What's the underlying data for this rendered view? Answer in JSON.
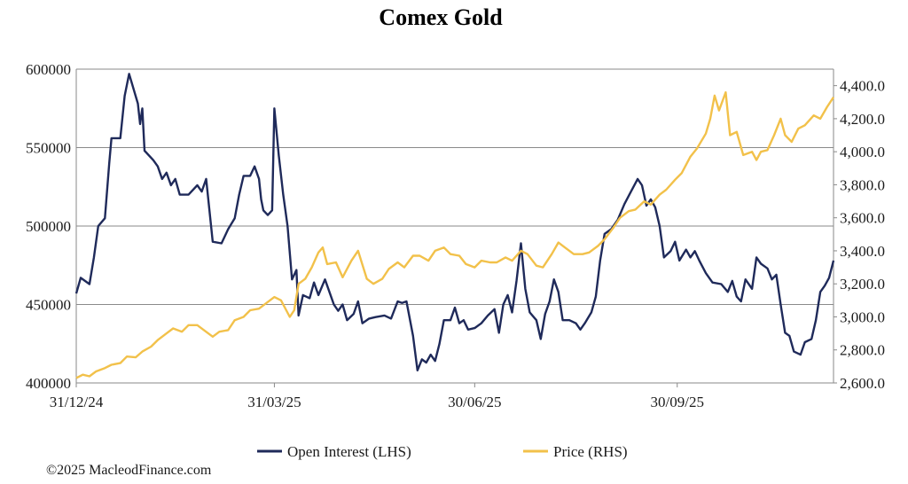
{
  "chart_data": {
    "type": "line",
    "title": "Comex Gold",
    "x_ticks": [
      "31/12/24",
      "31/03/25",
      "30/06/25",
      "30/09/25"
    ],
    "x_range": [
      "2024-12-31",
      "2025-12-10"
    ],
    "y_left": {
      "range": [
        400000,
        600000
      ],
      "ticks": [
        400000,
        450000,
        500000,
        550000,
        600000
      ],
      "tick_labels": [
        "400000",
        "450000",
        "500000",
        "550000",
        "600000"
      ]
    },
    "y_right": {
      "range": [
        2600,
        4500
      ],
      "ticks": [
        2600,
        2800,
        3000,
        3200,
        3400,
        3600,
        3800,
        4000,
        4200,
        4400
      ],
      "tick_labels": [
        "2,600.0",
        "2,800.0",
        "3,000.0",
        "3,200.0",
        "3,400.0",
        "3,600.0",
        "3,800.0",
        "4,000.0",
        "4,200.0",
        "4,400.0"
      ]
    },
    "gridlines": "horizontal",
    "legend_position": "bottom-center",
    "series": [
      {
        "name": "Open Interest (LHS)",
        "axis": "left",
        "color": "#1f2a5a",
        "points": [
          [
            "2024-12-31",
            457000
          ],
          [
            "2025-01-02",
            467000
          ],
          [
            "2025-01-06",
            463000
          ],
          [
            "2025-01-08",
            480000
          ],
          [
            "2025-01-10",
            500000
          ],
          [
            "2025-01-13",
            505000
          ],
          [
            "2025-01-15",
            540000
          ],
          [
            "2025-01-16",
            556000
          ],
          [
            "2025-01-20",
            556000
          ],
          [
            "2025-01-22",
            583000
          ],
          [
            "2025-01-24",
            597000
          ],
          [
            "2025-01-28",
            578000
          ],
          [
            "2025-01-29",
            565000
          ],
          [
            "2025-01-30",
            575000
          ],
          [
            "2025-01-31",
            548000
          ],
          [
            "2025-02-04",
            542000
          ],
          [
            "2025-02-06",
            538000
          ],
          [
            "2025-02-08",
            530000
          ],
          [
            "2025-02-10",
            534000
          ],
          [
            "2025-02-12",
            526000
          ],
          [
            "2025-02-14",
            530000
          ],
          [
            "2025-02-16",
            520000
          ],
          [
            "2025-02-20",
            520000
          ],
          [
            "2025-02-24",
            526000
          ],
          [
            "2025-02-26",
            522000
          ],
          [
            "2025-02-28",
            530000
          ],
          [
            "2025-03-03",
            490000
          ],
          [
            "2025-03-07",
            489000
          ],
          [
            "2025-03-10",
            498000
          ],
          [
            "2025-03-13",
            505000
          ],
          [
            "2025-03-15",
            520000
          ],
          [
            "2025-03-17",
            532000
          ],
          [
            "2025-03-20",
            532000
          ],
          [
            "2025-03-22",
            538000
          ],
          [
            "2025-03-24",
            530000
          ],
          [
            "2025-03-25",
            517000
          ],
          [
            "2025-03-26",
            510000
          ],
          [
            "2025-03-28",
            507000
          ],
          [
            "2025-03-30",
            510000
          ],
          [
            "2025-03-31",
            575000
          ],
          [
            "2025-04-02",
            545000
          ],
          [
            "2025-04-04",
            520000
          ],
          [
            "2025-04-06",
            500000
          ],
          [
            "2025-04-08",
            466000
          ],
          [
            "2025-04-10",
            472000
          ],
          [
            "2025-04-11",
            443000
          ],
          [
            "2025-04-13",
            456000
          ],
          [
            "2025-04-16",
            454000
          ],
          [
            "2025-04-18",
            464000
          ],
          [
            "2025-04-20",
            456000
          ],
          [
            "2025-04-23",
            466000
          ],
          [
            "2025-04-25",
            458000
          ],
          [
            "2025-04-27",
            450000
          ],
          [
            "2025-04-29",
            446000
          ],
          [
            "2025-05-01",
            450000
          ],
          [
            "2025-05-03",
            440000
          ],
          [
            "2025-05-06",
            444000
          ],
          [
            "2025-05-08",
            452000
          ],
          [
            "2025-05-10",
            438000
          ],
          [
            "2025-05-13",
            441000
          ],
          [
            "2025-05-16",
            442000
          ],
          [
            "2025-05-20",
            443000
          ],
          [
            "2025-05-23",
            441000
          ],
          [
            "2025-05-26",
            452000
          ],
          [
            "2025-05-28",
            451000
          ],
          [
            "2025-05-30",
            452000
          ],
          [
            "2025-06-02",
            430000
          ],
          [
            "2025-06-04",
            408000
          ],
          [
            "2025-06-06",
            415000
          ],
          [
            "2025-06-08",
            413000
          ],
          [
            "2025-06-10",
            418000
          ],
          [
            "2025-06-12",
            414000
          ],
          [
            "2025-06-14",
            425000
          ],
          [
            "2025-06-16",
            440000
          ],
          [
            "2025-06-19",
            440000
          ],
          [
            "2025-06-21",
            448000
          ],
          [
            "2025-06-23",
            438000
          ],
          [
            "2025-06-25",
            440000
          ],
          [
            "2025-06-27",
            434000
          ],
          [
            "2025-06-30",
            435000
          ],
          [
            "2025-07-03",
            438000
          ],
          [
            "2025-07-06",
            443000
          ],
          [
            "2025-07-09",
            447000
          ],
          [
            "2025-07-11",
            432000
          ],
          [
            "2025-07-13",
            450000
          ],
          [
            "2025-07-15",
            456000
          ],
          [
            "2025-07-17",
            445000
          ],
          [
            "2025-07-19",
            465000
          ],
          [
            "2025-07-21",
            489000
          ],
          [
            "2025-07-23",
            460000
          ],
          [
            "2025-07-25",
            445000
          ],
          [
            "2025-07-28",
            440000
          ],
          [
            "2025-07-30",
            428000
          ],
          [
            "2025-08-01",
            444000
          ],
          [
            "2025-08-03",
            452000
          ],
          [
            "2025-08-05",
            466000
          ],
          [
            "2025-08-07",
            458000
          ],
          [
            "2025-08-09",
            440000
          ],
          [
            "2025-08-12",
            440000
          ],
          [
            "2025-08-15",
            438000
          ],
          [
            "2025-08-17",
            434000
          ],
          [
            "2025-08-19",
            438000
          ],
          [
            "2025-08-22",
            445000
          ],
          [
            "2025-08-24",
            455000
          ],
          [
            "2025-08-26",
            478000
          ],
          [
            "2025-08-28",
            495000
          ],
          [
            "2025-08-31",
            498000
          ],
          [
            "2025-09-03",
            504000
          ],
          [
            "2025-09-06",
            514000
          ],
          [
            "2025-09-09",
            522000
          ],
          [
            "2025-09-12",
            530000
          ],
          [
            "2025-09-14",
            526000
          ],
          [
            "2025-09-16",
            513000
          ],
          [
            "2025-09-18",
            517000
          ],
          [
            "2025-09-20",
            512000
          ],
          [
            "2025-09-22",
            500000
          ],
          [
            "2025-09-24",
            480000
          ],
          [
            "2025-09-27",
            484000
          ],
          [
            "2025-09-29",
            490000
          ],
          [
            "2025-10-01",
            478000
          ],
          [
            "2025-10-04",
            485000
          ],
          [
            "2025-10-06",
            480000
          ],
          [
            "2025-10-08",
            484000
          ],
          [
            "2025-10-10",
            478000
          ],
          [
            "2025-10-13",
            470000
          ],
          [
            "2025-10-16",
            464000
          ],
          [
            "2025-10-20",
            463000
          ],
          [
            "2025-10-23",
            458000
          ],
          [
            "2025-10-25",
            465000
          ],
          [
            "2025-10-27",
            455000
          ],
          [
            "2025-10-29",
            452000
          ],
          [
            "2025-10-31",
            466000
          ],
          [
            "2025-11-03",
            460000
          ],
          [
            "2025-11-05",
            480000
          ],
          [
            "2025-11-07",
            476000
          ],
          [
            "2025-11-10",
            473000
          ],
          [
            "2025-11-12",
            466000
          ],
          [
            "2025-11-14",
            469000
          ],
          [
            "2025-11-16",
            450000
          ],
          [
            "2025-11-18",
            432000
          ],
          [
            "2025-11-20",
            430000
          ],
          [
            "2025-11-22",
            420000
          ],
          [
            "2025-11-25",
            418000
          ],
          [
            "2025-11-27",
            426000
          ],
          [
            "2025-11-30",
            428000
          ],
          [
            "2025-12-02",
            440000
          ],
          [
            "2025-12-04",
            458000
          ],
          [
            "2025-12-06",
            462000
          ],
          [
            "2025-12-08",
            467000
          ],
          [
            "2025-12-10",
            478000
          ]
        ]
      },
      {
        "name": "Price (RHS)",
        "axis": "right",
        "color": "#f2c14a",
        "points": [
          [
            "2024-12-31",
            2630
          ],
          [
            "2025-01-03",
            2650
          ],
          [
            "2025-01-06",
            2640
          ],
          [
            "2025-01-09",
            2670
          ],
          [
            "2025-01-13",
            2690
          ],
          [
            "2025-01-16",
            2710
          ],
          [
            "2025-01-20",
            2720
          ],
          [
            "2025-01-23",
            2760
          ],
          [
            "2025-01-27",
            2755
          ],
          [
            "2025-01-30",
            2790
          ],
          [
            "2025-02-03",
            2820
          ],
          [
            "2025-02-06",
            2860
          ],
          [
            "2025-02-10",
            2900
          ],
          [
            "2025-02-13",
            2930
          ],
          [
            "2025-02-17",
            2910
          ],
          [
            "2025-02-20",
            2950
          ],
          [
            "2025-02-24",
            2950
          ],
          [
            "2025-02-27",
            2920
          ],
          [
            "2025-03-03",
            2880
          ],
          [
            "2025-03-06",
            2910
          ],
          [
            "2025-03-10",
            2920
          ],
          [
            "2025-03-13",
            2980
          ],
          [
            "2025-03-17",
            3000
          ],
          [
            "2025-03-20",
            3040
          ],
          [
            "2025-03-24",
            3050
          ],
          [
            "2025-03-27",
            3080
          ],
          [
            "2025-03-31",
            3120
          ],
          [
            "2025-04-03",
            3100
          ],
          [
            "2025-04-07",
            3000
          ],
          [
            "2025-04-09",
            3040
          ],
          [
            "2025-04-11",
            3200
          ],
          [
            "2025-04-14",
            3230
          ],
          [
            "2025-04-17",
            3300
          ],
          [
            "2025-04-20",
            3390
          ],
          [
            "2025-04-22",
            3420
          ],
          [
            "2025-04-24",
            3320
          ],
          [
            "2025-04-28",
            3330
          ],
          [
            "2025-05-01",
            3240
          ],
          [
            "2025-05-05",
            3340
          ],
          [
            "2025-05-08",
            3400
          ],
          [
            "2025-05-12",
            3230
          ],
          [
            "2025-05-15",
            3200
          ],
          [
            "2025-05-19",
            3230
          ],
          [
            "2025-05-22",
            3290
          ],
          [
            "2025-05-26",
            3330
          ],
          [
            "2025-05-29",
            3300
          ],
          [
            "2025-06-02",
            3370
          ],
          [
            "2025-06-05",
            3370
          ],
          [
            "2025-06-09",
            3340
          ],
          [
            "2025-06-12",
            3400
          ],
          [
            "2025-06-16",
            3420
          ],
          [
            "2025-06-19",
            3380
          ],
          [
            "2025-06-23",
            3370
          ],
          [
            "2025-06-26",
            3320
          ],
          [
            "2025-06-30",
            3300
          ],
          [
            "2025-07-03",
            3340
          ],
          [
            "2025-07-07",
            3330
          ],
          [
            "2025-07-10",
            3330
          ],
          [
            "2025-07-14",
            3360
          ],
          [
            "2025-07-17",
            3340
          ],
          [
            "2025-07-21",
            3400
          ],
          [
            "2025-07-24",
            3380
          ],
          [
            "2025-07-28",
            3310
          ],
          [
            "2025-07-31",
            3300
          ],
          [
            "2025-08-04",
            3380
          ],
          [
            "2025-08-07",
            3450
          ],
          [
            "2025-08-11",
            3410
          ],
          [
            "2025-08-14",
            3380
          ],
          [
            "2025-08-18",
            3380
          ],
          [
            "2025-08-21",
            3390
          ],
          [
            "2025-08-25",
            3430
          ],
          [
            "2025-08-28",
            3470
          ],
          [
            "2025-09-01",
            3540
          ],
          [
            "2025-09-04",
            3600
          ],
          [
            "2025-09-08",
            3640
          ],
          [
            "2025-09-11",
            3650
          ],
          [
            "2025-09-15",
            3700
          ],
          [
            "2025-09-18",
            3680
          ],
          [
            "2025-09-22",
            3740
          ],
          [
            "2025-09-25",
            3770
          ],
          [
            "2025-09-29",
            3830
          ],
          [
            "2025-10-02",
            3870
          ],
          [
            "2025-10-06",
            3970
          ],
          [
            "2025-10-09",
            4020
          ],
          [
            "2025-10-13",
            4110
          ],
          [
            "2025-10-15",
            4200
          ],
          [
            "2025-10-17",
            4340
          ],
          [
            "2025-10-19",
            4250
          ],
          [
            "2025-10-22",
            4360
          ],
          [
            "2025-10-24",
            4100
          ],
          [
            "2025-10-27",
            4120
          ],
          [
            "2025-10-30",
            3980
          ],
          [
            "2025-11-03",
            4000
          ],
          [
            "2025-11-05",
            3950
          ],
          [
            "2025-11-07",
            4000
          ],
          [
            "2025-11-10",
            4010
          ],
          [
            "2025-11-13",
            4100
          ],
          [
            "2025-11-16",
            4200
          ],
          [
            "2025-11-18",
            4100
          ],
          [
            "2025-11-21",
            4060
          ],
          [
            "2025-11-24",
            4140
          ],
          [
            "2025-11-27",
            4160
          ],
          [
            "2025-12-01",
            4220
          ],
          [
            "2025-12-04",
            4200
          ],
          [
            "2025-12-07",
            4270
          ],
          [
            "2025-12-10",
            4330
          ]
        ]
      }
    ]
  },
  "footer": {
    "copyright": "©2025 MacleodFinance.com"
  }
}
